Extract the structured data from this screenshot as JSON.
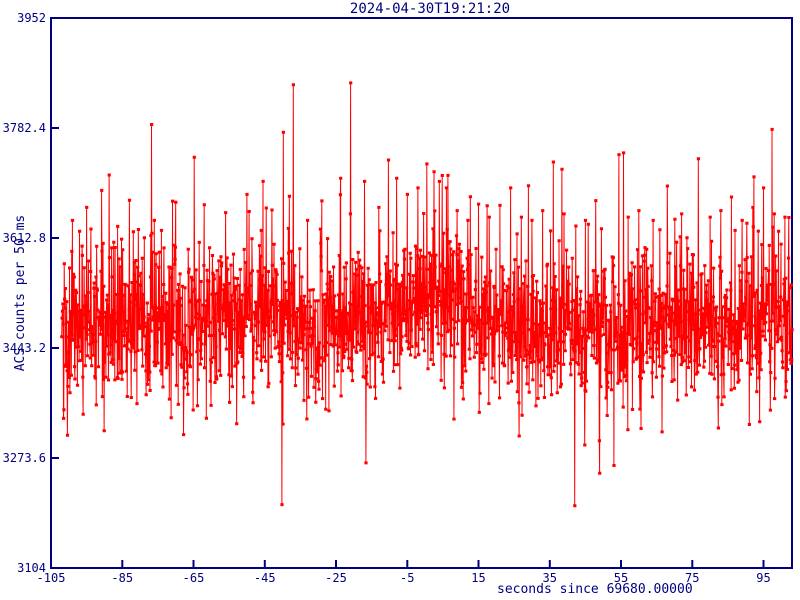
{
  "chart_data": {
    "type": "line",
    "title": "2024-04-30T19:21:20",
    "xlabel": "seconds since 69680.00000",
    "ylabel": "ACS counts per 50 ms",
    "xlim": [
      -105,
      103
    ],
    "ylim": [
      3104,
      3952
    ],
    "xticks": [
      -105,
      -85,
      -65,
      -45,
      -25,
      -5,
      15,
      35,
      55,
      75,
      95
    ],
    "xtick_labels": [
      "-105",
      "-85",
      "-65",
      "-45",
      "-25",
      "-5",
      "15",
      "35",
      "55",
      "75",
      "95"
    ],
    "yticks": [
      3104,
      3273.6,
      3443.2,
      3612.8,
      3782.4,
      3952
    ],
    "ytick_labels": [
      "3104",
      "3273.6",
      "3443.2",
      "3612.8",
      "3782.4",
      "3952"
    ],
    "grid": false,
    "legend": null,
    "frame_color": "#000080",
    "background_color": "#ffffff",
    "series": [
      {
        "name": "ACS counts",
        "color": "#ff0000",
        "marker": "square",
        "marker_size": 3,
        "line_width": 1,
        "x_start": -102,
        "x_end": 103,
        "sample_step": 0.1,
        "baseline_mean": 3480,
        "noise_sd": 60,
        "bump": {
          "center": 3,
          "sigma": 5.5,
          "amplitude": 60
        },
        "spikes": [
          [
            -99,
            3640
          ],
          [
            -95,
            3660
          ],
          [
            -88.7,
            3710
          ],
          [
            -83,
            3671
          ],
          [
            -76,
            3640
          ],
          [
            -70,
            3668
          ],
          [
            -62,
            3664
          ],
          [
            -56,
            3652
          ],
          [
            -50,
            3680
          ],
          [
            -45.5,
            3700
          ],
          [
            -43,
            3656
          ],
          [
            -39.8,
            3776
          ],
          [
            -37,
            3849
          ],
          [
            -33,
            3640
          ],
          [
            -29,
            3670
          ],
          [
            -23.7,
            3705
          ],
          [
            -21,
            3650
          ],
          [
            -17,
            3700
          ],
          [
            -13,
            3660
          ],
          [
            -10.3,
            3733
          ],
          [
            -8,
            3705
          ],
          [
            -5,
            3680
          ],
          [
            -2,
            3690
          ],
          [
            0.5,
            3727
          ],
          [
            2.5,
            3715
          ],
          [
            4,
            3700
          ],
          [
            6,
            3690
          ],
          [
            9,
            3655
          ],
          [
            12,
            3640
          ],
          [
            15,
            3665
          ],
          [
            18,
            3645
          ],
          [
            21,
            3663
          ],
          [
            24,
            3690
          ],
          [
            27,
            3645
          ],
          [
            30,
            3640
          ],
          [
            33,
            3655
          ],
          [
            36,
            3730
          ],
          [
            39,
            3650
          ],
          [
            42,
            3200
          ],
          [
            45,
            3640
          ],
          [
            49,
            3250
          ],
          [
            53,
            3262
          ],
          [
            57,
            3645
          ],
          [
            60,
            3655
          ],
          [
            64,
            3640
          ],
          [
            68,
            3693
          ],
          [
            72,
            3650
          ],
          [
            76.7,
            3735
          ],
          [
            80,
            3645
          ],
          [
            83,
            3655
          ],
          [
            86,
            3676
          ],
          [
            89,
            3640
          ],
          [
            92,
            3660
          ],
          [
            95,
            3690
          ],
          [
            98,
            3650
          ],
          [
            101,
            3645
          ]
        ],
        "seed": 20240430
      }
    ]
  }
}
